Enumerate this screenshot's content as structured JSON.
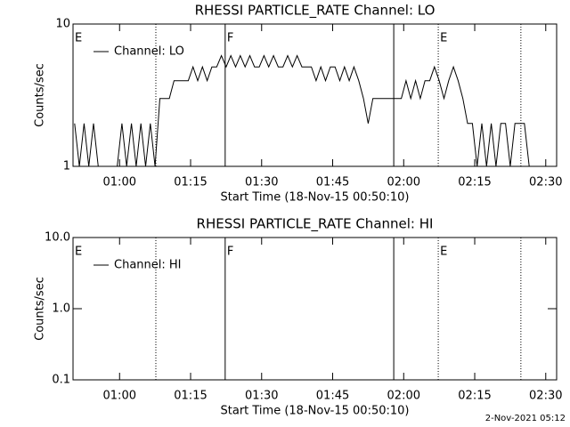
{
  "chart_data": [
    {
      "type": "line",
      "title": "RHESSI PARTICLE_RATE Channel: LO",
      "xlabel": "Start Time (18-Nov-15 00:50:10)",
      "ylabel": "Counts/sec",
      "log_y": true,
      "legend": "upper left",
      "x": [
        50.5,
        51.5,
        52.5,
        53.5,
        54.5,
        55.5,
        56.5,
        57.5,
        58.5,
        59.5,
        60.5,
        61.5,
        62.5,
        63.5,
        64.5,
        65.5,
        66.5,
        67.5,
        68.5,
        69.5,
        70.5,
        71.5,
        72.5,
        73.5,
        74.5,
        75.5,
        76.5,
        77.5,
        78.5,
        79.5,
        80.5,
        81.5,
        82.5,
        83.5,
        84.5,
        85.5,
        86.5,
        87.5,
        88.5,
        89.5,
        90.5,
        91.5,
        92.5,
        93.5,
        94.5,
        95.5,
        96.5,
        97.5,
        98.5,
        99.5,
        100.5,
        101.5,
        102.5,
        103.5,
        104.5,
        105.5,
        106.5,
        107.5,
        108.5,
        109.5,
        110.5,
        111.5,
        112.5,
        113.5,
        114.5,
        115.5,
        116.5,
        117.5,
        118.5,
        119.5,
        120.5,
        121.5,
        122.5,
        123.5,
        124.5,
        125.5,
        126.5,
        127.5,
        128.5,
        129.5,
        130.5,
        131.5,
        132.5,
        133.5,
        134.5,
        135.5,
        136.5,
        137.5,
        138.5,
        139.5,
        140.5,
        141.5,
        142.5,
        143.5,
        144.5,
        145.5,
        146.5,
        147.5
      ],
      "series": [
        {
          "name": "Channel: LO",
          "color": "#000000",
          "values": [
            2,
            1,
            2,
            1,
            2,
            1,
            1,
            1,
            1,
            1,
            2,
            1,
            2,
            1,
            2,
            1,
            2,
            1,
            3,
            3,
            3,
            4,
            4,
            4,
            4,
            5,
            4,
            5,
            4,
            5,
            5,
            6,
            5,
            6,
            5,
            6,
            5,
            6,
            5,
            5,
            6,
            5,
            6,
            5,
            5,
            6,
            5,
            6,
            5,
            5,
            5,
            4,
            5,
            4,
            5,
            5,
            4,
            5,
            4,
            5,
            4,
            3,
            2,
            3,
            3,
            3,
            3,
            3,
            3,
            3,
            4,
            3,
            4,
            3,
            4,
            4,
            5,
            4,
            3,
            4,
            5,
            4,
            3,
            2,
            2,
            1,
            2,
            1,
            2,
            1,
            2,
            2,
            1,
            2,
            2,
            2,
            1,
            1
          ]
        }
      ],
      "xlim": [
        50.17,
        152.3
      ],
      "ylim": [
        1,
        10
      ],
      "xticks": [
        {
          "value": 60,
          "label": "01:00"
        },
        {
          "value": 75,
          "label": "01:15"
        },
        {
          "value": 90,
          "label": "01:30"
        },
        {
          "value": 105,
          "label": "01:45"
        },
        {
          "value": 120,
          "label": "02:00"
        },
        {
          "value": 135,
          "label": "02:15"
        },
        {
          "value": 150,
          "label": "02:30"
        }
      ],
      "yticks": [
        1,
        10
      ],
      "markers": [
        {
          "x": 50.17,
          "style": "solid",
          "label": "E"
        },
        {
          "x": 67.66,
          "style": "dotted"
        },
        {
          "x": 82.3,
          "style": "solid",
          "label": "F"
        },
        {
          "x": 117.9,
          "style": "solid"
        },
        {
          "x": 127.3,
          "style": "dotted",
          "label": "E"
        },
        {
          "x": 144.75,
          "style": "dotted"
        }
      ]
    },
    {
      "type": "line",
      "title": "RHESSI PARTICLE_RATE Channel: HI",
      "xlabel": "Start Time (18-Nov-15 00:50:10)",
      "ylabel": "Counts/sec",
      "log_y": true,
      "legend": "upper left",
      "x": [],
      "series": [
        {
          "name": "Channel: HI",
          "color": "#000000",
          "values": []
        }
      ],
      "xlim": [
        50.17,
        152.3
      ],
      "ylim": [
        0.1,
        10
      ],
      "xticks": [
        {
          "value": 60,
          "label": "01:00"
        },
        {
          "value": 75,
          "label": "01:15"
        },
        {
          "value": 90,
          "label": "01:30"
        },
        {
          "value": 105,
          "label": "01:45"
        },
        {
          "value": 120,
          "label": "02:00"
        },
        {
          "value": 135,
          "label": "02:15"
        },
        {
          "value": 150,
          "label": "02:30"
        }
      ],
      "yticks": [
        0.1,
        {
          "value": 1,
          "label": "1.0"
        },
        {
          "value": 10,
          "label": "10.0"
        }
      ],
      "markers": [
        {
          "x": 50.17,
          "style": "solid",
          "label": "E"
        },
        {
          "x": 67.66,
          "style": "dotted"
        },
        {
          "x": 82.3,
          "style": "solid",
          "label": "F"
        },
        {
          "x": 117.9,
          "style": "solid"
        },
        {
          "x": 127.3,
          "style": "dotted",
          "label": "E"
        },
        {
          "x": 144.75,
          "style": "dotted"
        }
      ]
    }
  ],
  "footer": "2-Nov-2021 05:12"
}
